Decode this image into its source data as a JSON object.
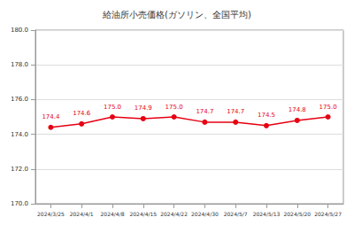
{
  "chart_data": {
    "type": "line",
    "title": "給油所小売価格(ガソリン、全国平均)",
    "categories": [
      "2024/3/25",
      "2024/4/1",
      "2024/4/8",
      "2024/4/15",
      "2024/4/22",
      "2024/4/30",
      "2024/5/7",
      "2024/5/13",
      "2024/5/20",
      "2024/5/27"
    ],
    "values": [
      174.4,
      174.6,
      175.0,
      174.9,
      175.0,
      174.7,
      174.7,
      174.5,
      174.8,
      175.0
    ],
    "value_labels": [
      "174.4",
      "174.6",
      "175.0",
      "174.9",
      "175.0",
      "174.7",
      "174.7",
      "174.5",
      "174.8",
      "175.0"
    ],
    "color": "#e60012",
    "marker": "circle",
    "ylim": [
      170,
      180
    ],
    "yticks": [
      {
        "value": 170,
        "label": "170.0"
      },
      {
        "value": 172,
        "label": "172.0"
      },
      {
        "value": 174,
        "label": "174.0"
      },
      {
        "value": 176,
        "label": "176.0"
      },
      {
        "value": 178,
        "label": "178.0"
      },
      {
        "value": 180,
        "label": "180.0"
      }
    ],
    "grid": true,
    "data_labels": true
  }
}
